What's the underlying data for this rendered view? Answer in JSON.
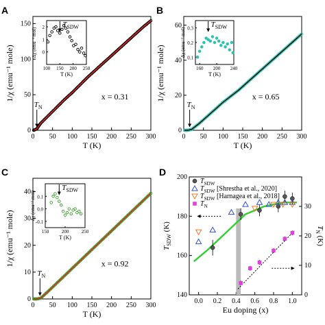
{
  "chart_data": [
    {
      "panel": "A",
      "type": "scatter",
      "xlabel": "T (K)",
      "ylabel": "1/χ (emu⁻¹ mole)",
      "xlim": [
        0,
        300
      ],
      "ylim": [
        0,
        160
      ],
      "xticks": [
        "0",
        "50",
        "100",
        "150",
        "200",
        "250",
        "300"
      ],
      "yticks": [
        "0",
        "50",
        "100",
        "150"
      ],
      "annotation": "x = 0.31",
      "tn_label": "T_N",
      "tn_x": 10,
      "data_x": [
        2,
        10,
        20,
        40,
        60,
        80,
        100,
        120,
        140,
        160,
        180,
        200,
        220,
        240,
        260,
        280,
        300
      ],
      "data_y": [
        0,
        2,
        10,
        21,
        32,
        43,
        53,
        64,
        75,
        85,
        95,
        105,
        115,
        125,
        135,
        145,
        154
      ],
      "fit_color": "#e62020",
      "marker_color": "#000000",
      "inset": {
        "xlabel": "T (K)",
        "ylabel": "Δχ (emu⁻¹ mol)",
        "xlim": [
          100,
          250
        ],
        "ylim": [
          -1,
          2.5
        ],
        "xticks": [
          "100",
          "150",
          "200",
          "250"
        ],
        "yticks": [
          "0",
          "1",
          "2"
        ],
        "arrow_label": "T_SDW",
        "arrow_x": 150,
        "data_x": [
          105,
          112,
          120,
          128,
          135,
          142,
          150,
          158,
          165,
          172,
          180,
          188,
          195,
          202,
          210,
          218,
          225,
          232,
          240,
          246
        ],
        "data_y": [
          0.8,
          1.3,
          1.6,
          1.9,
          2.0,
          1.7,
          1.5,
          1.8,
          2.1,
          1.9,
          1.6,
          1.2,
          0.9,
          0.5,
          0.6,
          0.2,
          0.0,
          0.3,
          -0.1,
          -0.3
        ]
      }
    },
    {
      "panel": "B",
      "type": "scatter",
      "xlabel": "T (K)",
      "ylabel": "1/χ (emu⁻¹ mole)",
      "xlim": [
        0,
        300
      ],
      "ylim": [
        0,
        65
      ],
      "xticks": [
        "0",
        "50",
        "100",
        "150",
        "200",
        "250",
        "300"
      ],
      "yticks": [
        "0",
        "20",
        "40",
        "60"
      ],
      "annotation": "x = 0.65",
      "tn_label": "T_N",
      "tn_x": 15,
      "data_x": [
        2,
        10,
        20,
        40,
        60,
        80,
        100,
        120,
        140,
        160,
        180,
        200,
        220,
        240,
        260,
        280,
        300
      ],
      "data_y": [
        0,
        0,
        0.5,
        4,
        8,
        12,
        16,
        19.5,
        23,
        27,
        31,
        35,
        39,
        43,
        47,
        51,
        55
      ],
      "fit_color": "#000000",
      "marker_color": "#2ec4b0",
      "inset": {
        "xlabel": "T (K)",
        "ylabel": "Δχ (emu⁻¹ mol)",
        "xlim": [
          150,
          240
        ],
        "ylim": [
          0.05,
          0.35
        ],
        "xticks": [
          "160",
          "200",
          "240"
        ],
        "yticks": [
          "0.1",
          "0.2",
          "0.3"
        ],
        "arrow_label": "T_SDW",
        "arrow_x": 180,
        "data_x": [
          155,
          160,
          165,
          170,
          175,
          180,
          185,
          190,
          195,
          200,
          205,
          210,
          215,
          220,
          225,
          230,
          235,
          238
        ],
        "data_y": [
          0.1,
          0.14,
          0.17,
          0.2,
          0.23,
          0.22,
          0.21,
          0.24,
          0.2,
          0.23,
          0.21,
          0.18,
          0.2,
          0.17,
          0.19,
          0.15,
          0.2,
          0.13
        ]
      }
    },
    {
      "panel": "C",
      "type": "scatter",
      "xlabel": "T (K)",
      "ylabel": "1/χ (emu⁻¹ mole)",
      "xlim": [
        0,
        300
      ],
      "ylim": [
        0,
        45
      ],
      "xticks": [
        "0",
        "50",
        "100",
        "150",
        "200",
        "250",
        "300"
      ],
      "yticks": [
        "0",
        "10",
        "20",
        "30",
        "40"
      ],
      "annotation": "x = 0.92",
      "tn_label": "T_N",
      "tn_x": 18,
      "data_x": [
        2,
        10,
        20,
        40,
        60,
        80,
        100,
        120,
        140,
        160,
        180,
        200,
        220,
        240,
        260,
        280,
        300
      ],
      "data_y": [
        0,
        0,
        0.3,
        3,
        5.8,
        8.6,
        11.4,
        14.2,
        17,
        19.8,
        22.6,
        25.4,
        28.2,
        31,
        33.8,
        36.6,
        39.4
      ],
      "fit_color": "#e62020",
      "marker_color": "#3aa02a",
      "inset": {
        "xlabel": "T (K)",
        "ylabel": "Δχ (emu⁻¹ mol)",
        "xlim": [
          150,
          250
        ],
        "ylim": [
          -0.15,
          0.2
        ],
        "xticks": [
          "150",
          "200",
          "250"
        ],
        "yticks": [
          "-0.1",
          "0.0",
          "0.1"
        ],
        "arrow_label": "T_SDW",
        "arrow_x": 185,
        "data_x": [
          165,
          170,
          175,
          180,
          185,
          190,
          195,
          200,
          205,
          210,
          215,
          220,
          225,
          230,
          235,
          240
        ],
        "data_y": [
          0.05,
          0.1,
          0.12,
          0.09,
          0.06,
          0.03,
          -0.02,
          -0.05,
          -0.03,
          0.0,
          -0.04,
          -0.01,
          0.0,
          -0.03,
          -0.02,
          -0.04
        ]
      }
    },
    {
      "panel": "D",
      "type": "scatter",
      "xlabel": "Eu doping (x)",
      "ylabel": "T_SDW (K)",
      "ylabel_right": "T_N (K)",
      "xlim": [
        -0.1,
        1.1
      ],
      "ylim": [
        140,
        200
      ],
      "ylim_right": [
        0,
        40
      ],
      "xticks": [
        "0.0",
        "0.2",
        "0.4",
        "0.6",
        "0.8",
        "1.0"
      ],
      "yticks": [
        "140",
        "160",
        "180",
        "200"
      ],
      "yticks_right": [
        "0",
        "10",
        "20",
        "30"
      ],
      "legend": [
        {
          "label": "T_SDW",
          "marker": "circle",
          "color": "#555555"
        },
        {
          "label": "T_SDW [Shrestha et al., 2020]",
          "marker": "triangle-up",
          "color": "#3050d0"
        },
        {
          "label": "T_SDW [Harnagea et al., 2018]",
          "marker": "triangle-down",
          "color": "#f07820"
        },
        {
          "label": "T_N",
          "marker": "square",
          "color": "#e040e0"
        }
      ],
      "series": [
        {
          "name": "T_SDW",
          "x": [
            0.15,
            0.45,
            0.65,
            0.85,
            0.92,
            1.0
          ],
          "y": [
            164,
            181,
            183,
            185,
            190,
            189
          ],
          "err": [
            4,
            3,
            3,
            3,
            3,
            3
          ]
        },
        {
          "name": "T_SDW [Shrestha et al., 2020]",
          "x": [
            0,
            0.15,
            0.35,
            0.5,
            0.65,
            0.75,
            0.85,
            0.92,
            1.0
          ],
          "y": [
            167,
            173,
            182,
            186,
            187,
            186,
            187,
            187,
            187
          ]
        },
        {
          "name": "T_SDW [Harnagea et al., 2018]",
          "x": [
            0,
            0.6,
            0.8,
            0.9,
            1.0
          ],
          "y": [
            172,
            184,
            186,
            186,
            186
          ]
        },
        {
          "name": "T_N",
          "x": [
            0.45,
            0.55,
            0.65,
            0.8,
            0.92,
            1.0
          ],
          "y_right": [
            4,
            9,
            11,
            15,
            19,
            21
          ],
          "err": [
            0.8,
            0.8,
            0.8,
            0.8,
            0.8,
            0.8
          ]
        }
      ],
      "fit_tsdw": {
        "x": [
          -0.05,
          0.1,
          0.3,
          0.5,
          0.7,
          0.9,
          1.05
        ],
        "y": [
          157,
          163,
          172,
          181,
          185,
          187,
          187
        ],
        "color": "#2ed030"
      },
      "fit_tn": {
        "x": [
          0.42,
          1.03
        ],
        "y_right": [
          2,
          22
        ]
      },
      "shaded_band_x": [
        0.4,
        0.45
      ]
    }
  ]
}
